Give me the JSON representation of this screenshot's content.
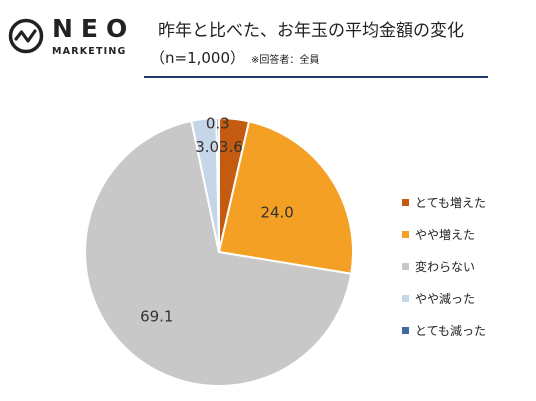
{
  "brand": {
    "name": "NEO",
    "sub": "MARKETING"
  },
  "header": {
    "title": "昨年と比べた、お年玉の平均金額の変化",
    "subtitle": "（n=1,000）",
    "note": "※回答者：全員"
  },
  "chart_data": {
    "type": "pie",
    "labels": [
      "とても増えた",
      "やや増えた",
      "変わらない",
      "やや減った",
      "とても減った"
    ],
    "values": [
      3.6,
      24.0,
      69.1,
      3.0,
      0.3
    ],
    "value_labels": [
      "3.6",
      "24.0",
      "69.1",
      "3.0",
      "0.3"
    ],
    "colors": [
      "#c55a11",
      "#f4a024",
      "#c8c8c8",
      "#c5d6e8",
      "#3f6aa4"
    ],
    "start_angle_deg": 0,
    "direction": "clockwise",
    "legend_position": "right"
  }
}
